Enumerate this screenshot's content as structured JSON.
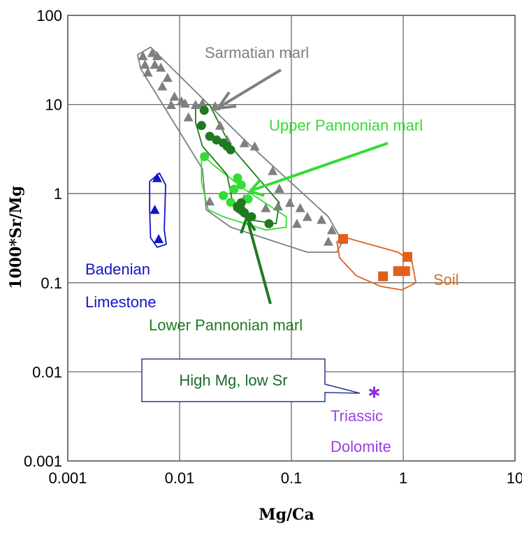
{
  "chart_data": {
    "type": "scatter",
    "xscale": "log",
    "yscale": "log",
    "xlabel": "Mg/Ca",
    "ylabel": "1000*Sr/Mg",
    "xlim": [
      0.001,
      10
    ],
    "ylim": [
      0.001,
      100
    ],
    "xticks": [
      "0.001",
      "0.01",
      "0.1",
      "1",
      "10"
    ],
    "yticks": [
      "100",
      "10",
      "1",
      "0.1",
      "0.01",
      "0.001"
    ],
    "grid": true,
    "series": [
      {
        "name": "Sarmatian marl",
        "label_lines": [
          "Sarmatian marl"
        ],
        "marker": "triangle",
        "color": "#7f7f7f",
        "points": [
          [
            0.0047,
            35
          ],
          [
            0.0057,
            38
          ],
          [
            0.0063,
            35
          ],
          [
            0.0049,
            28
          ],
          [
            0.006,
            28
          ],
          [
            0.0052,
            23
          ],
          [
            0.0068,
            26
          ],
          [
            0.0078,
            20
          ],
          [
            0.007,
            16
          ],
          [
            0.009,
            12.3
          ],
          [
            0.0104,
            10.9
          ],
          [
            0.0084,
            9.9
          ],
          [
            0.0112,
            10.3
          ],
          [
            0.0139,
            9.9
          ],
          [
            0.016,
            10.3
          ],
          [
            0.0208,
            9.6
          ],
          [
            0.012,
            7.2
          ],
          [
            0.023,
            5.8
          ],
          [
            0.0266,
            4
          ],
          [
            0.038,
            3.7
          ],
          [
            0.047,
            3.4
          ],
          [
            0.068,
            1.8
          ],
          [
            0.078,
            1.14
          ],
          [
            0.076,
            0.72
          ],
          [
            0.059,
            0.69
          ],
          [
            0.097,
            0.79
          ],
          [
            0.12,
            0.69
          ],
          [
            0.139,
            0.55
          ],
          [
            0.186,
            0.51
          ],
          [
            0.112,
            0.46
          ],
          [
            0.23,
            0.39
          ],
          [
            0.214,
            0.29
          ],
          [
            0.0186,
            0.82
          ],
          [
            0.038,
            0.87
          ]
        ],
        "outline": [
          [
            0.0042,
            36
          ],
          [
            0.0055,
            44
          ],
          [
            0.0104,
            20
          ],
          [
            0.038,
            4
          ],
          [
            0.214,
            0.55
          ],
          [
            0.286,
            0.29
          ],
          [
            0.255,
            0.22
          ],
          [
            0.139,
            0.22
          ],
          [
            0.0286,
            0.42
          ],
          [
            0.0173,
            0.66
          ],
          [
            0.016,
            1.9
          ],
          [
            0.0045,
            25
          ]
        ]
      },
      {
        "name": "Upper Pannonian marl",
        "label_lines": [
          "Upper Pannonian marl"
        ],
        "marker": "circle",
        "color": "#33dd33",
        "points": [
          [
            0.0167,
            2.6
          ],
          [
            0.033,
            1.5
          ],
          [
            0.0356,
            1.25
          ],
          [
            0.0246,
            0.95
          ],
          [
            0.0286,
            0.8
          ],
          [
            0.041,
            0.87
          ],
          [
            0.0307,
            1.12
          ]
        ],
        "outline": [
          [
            0.0157,
            2.8
          ],
          [
            0.02,
            2.1
          ],
          [
            0.038,
            1.12
          ],
          [
            0.09,
            0.55
          ],
          [
            0.09,
            0.42
          ],
          [
            0.059,
            0.39
          ],
          [
            0.0246,
            0.55
          ],
          [
            0.018,
            0.66
          ],
          [
            0.0157,
            1.37
          ]
        ]
      },
      {
        "name": "Lower Pannonian marl",
        "label_lines": [
          "Lower Pannonian marl"
        ],
        "marker": "circle",
        "color": "#1f7a1f",
        "points": [
          [
            0.0166,
            8.6
          ],
          [
            0.0157,
            5.8
          ],
          [
            0.0186,
            4.4
          ],
          [
            0.0214,
            4
          ],
          [
            0.0246,
            3.7
          ],
          [
            0.0266,
            3.4
          ],
          [
            0.0286,
            3.1
          ],
          [
            0.033,
            0.72
          ],
          [
            0.0356,
            0.66
          ],
          [
            0.038,
            0.61
          ],
          [
            0.044,
            0.55
          ],
          [
            0.063,
            0.46
          ],
          [
            0.0356,
            0.79
          ]
        ],
        "outline": [
          [
            0.0139,
            9.9
          ],
          [
            0.0186,
            9.9
          ],
          [
            0.0286,
            3.4
          ],
          [
            0.078,
            0.79
          ],
          [
            0.073,
            0.46
          ],
          [
            0.041,
            0.51
          ],
          [
            0.0307,
            0.66
          ],
          [
            0.0266,
            1.63
          ],
          [
            0.016,
            3.4
          ],
          [
            0.0139,
            6.3
          ]
        ]
      },
      {
        "name": "Badenian Limestone",
        "label_lines": [
          "Badenian",
          "Limestone"
        ],
        "marker": "triangle",
        "color": "#1414c8",
        "points": [
          [
            0.0063,
            1.5
          ],
          [
            0.006,
            0.66
          ],
          [
            0.0065,
            0.31
          ]
        ],
        "outline": [
          [
            0.0054,
            1.37
          ],
          [
            0.0066,
            1.7
          ],
          [
            0.0075,
            1.25
          ],
          [
            0.0073,
            0.39
          ],
          [
            0.0076,
            0.27
          ],
          [
            0.0063,
            0.25
          ],
          [
            0.0055,
            0.32
          ],
          [
            0.0054,
            0.66
          ]
        ]
      },
      {
        "name": "Soil",
        "label_lines": [
          "Soil"
        ],
        "marker": "square",
        "color": "#e0601a",
        "points": [
          [
            0.29,
            0.31
          ],
          [
            0.66,
            0.118
          ],
          [
            0.9,
            0.135
          ],
          [
            1.04,
            0.135
          ],
          [
            1.09,
            0.195
          ]
        ],
        "outline": [
          [
            0.255,
            0.29
          ],
          [
            0.307,
            0.32
          ],
          [
            0.9,
            0.22
          ],
          [
            1.2,
            0.17
          ],
          [
            1.3,
            0.1
          ],
          [
            0.97,
            0.083
          ],
          [
            0.63,
            0.091
          ],
          [
            0.38,
            0.12
          ],
          [
            0.27,
            0.19
          ]
        ]
      },
      {
        "name": "Triassic Dolomite",
        "label_lines": [
          "Triassic",
          "Dolomite"
        ],
        "marker": "asterisk",
        "color": "#8a2be2",
        "points": [
          [
            0.55,
            0.0059
          ]
        ]
      }
    ],
    "annotations": {
      "callout": "High Mg, low Sr"
    }
  }
}
